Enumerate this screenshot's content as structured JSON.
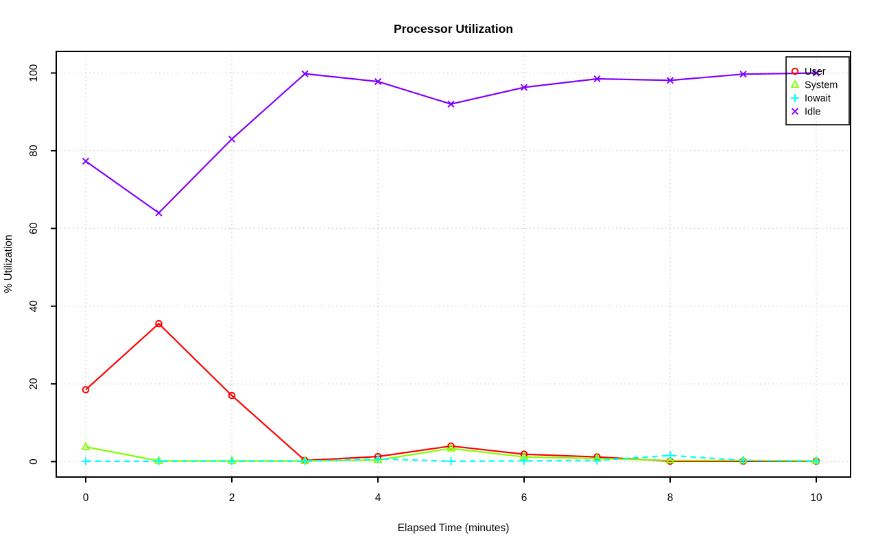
{
  "chart_data": {
    "type": "line",
    "title": "Processor Utilization",
    "xlabel": "Elapsed Time (minutes)",
    "ylabel": "% Utilization",
    "x": [
      0,
      1,
      2,
      3,
      4,
      5,
      6,
      7,
      8,
      9,
      10
    ],
    "xticks": [
      0,
      2,
      4,
      6,
      8,
      10
    ],
    "yticks": [
      0,
      20,
      40,
      60,
      80,
      100
    ],
    "xlim": [
      0,
      10
    ],
    "ylim": [
      0,
      100
    ],
    "grid": "dotted",
    "grid_color": "#c9c9c9",
    "axis_color": "#000000",
    "background_color": "#ffffff",
    "legend_position": "top-right",
    "legend_labels": [
      "User",
      "System",
      "Iowait",
      "Idle"
    ],
    "series": [
      {
        "name": "User",
        "color": "#FF0000",
        "marker": "circle",
        "line_style": "solid",
        "values": [
          18.5,
          35.5,
          17.0,
          0.3,
          1.3,
          4.0,
          1.9,
          1.2,
          0.1,
          0.1,
          0.1
        ]
      },
      {
        "name": "System",
        "color": "#80FF00",
        "marker": "triangle",
        "line_style": "solid",
        "values": [
          3.8,
          0.2,
          0.2,
          0.2,
          0.4,
          3.4,
          1.2,
          0.8,
          0.3,
          0.3,
          0.2
        ]
      },
      {
        "name": "Iowait",
        "color": "#00FFFF",
        "marker": "plus",
        "line_style": "dashed",
        "values": [
          0.1,
          0.1,
          0.1,
          0.1,
          0.7,
          0.1,
          0.2,
          0.3,
          1.6,
          0.3,
          0.1
        ]
      },
      {
        "name": "Idle",
        "color": "#8000FF",
        "marker": "x",
        "line_style": "solid",
        "values": [
          77.3,
          64.0,
          83.0,
          99.8,
          97.8,
          92.0,
          96.3,
          98.5,
          98.1,
          99.7,
          100.0
        ]
      }
    ]
  }
}
